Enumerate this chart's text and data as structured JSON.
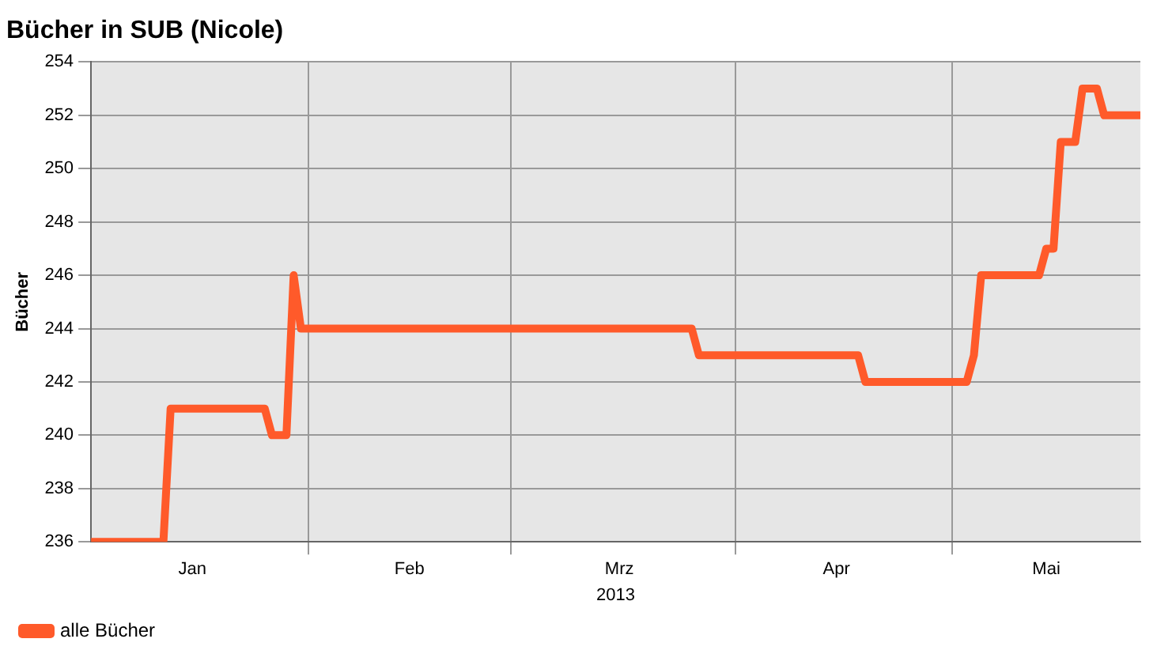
{
  "chart_data": {
    "type": "line",
    "title": "Bücher in SUB (Nicole)",
    "xlabel": "2013",
    "ylabel": "Bücher",
    "x": [
      "2013-01-02",
      "2013-01-12",
      "2013-01-13",
      "2013-01-26",
      "2013-01-27",
      "2013-01-29",
      "2013-01-30",
      "2013-01-31",
      "2013-03-26",
      "2013-03-27",
      "2013-04-18",
      "2013-04-19",
      "2013-05-03",
      "2013-05-04",
      "2013-05-05",
      "2013-05-13",
      "2013-05-14",
      "2013-05-15",
      "2013-05-16",
      "2013-05-18",
      "2013-05-19",
      "2013-05-21",
      "2013-05-22",
      "2013-05-27"
    ],
    "series": [
      {
        "name": "alle Bücher",
        "color": "#ff5a2a",
        "values": [
          236,
          236,
          241,
          241,
          240,
          240,
          246,
          244,
          244,
          243,
          243,
          242,
          242,
          243,
          246,
          246,
          247,
          247,
          251,
          251,
          253,
          253,
          252,
          252
        ]
      }
    ],
    "xlim": [
      "2013-01-02",
      "2013-05-27"
    ],
    "xticks": [
      {
        "value": "2013-01-16",
        "label": "Jan"
      },
      {
        "value": "2013-02-01",
        "label": null
      },
      {
        "value": "2013-02-15",
        "label": "Feb"
      },
      {
        "value": "2013-03-01",
        "label": null
      },
      {
        "value": "2013-03-16",
        "label": "Mrz"
      },
      {
        "value": "2013-04-01",
        "label": null
      },
      {
        "value": "2013-04-15",
        "label": "Apr"
      },
      {
        "value": "2013-05-01",
        "label": null
      },
      {
        "value": "2013-05-14",
        "label": "Mai"
      }
    ],
    "ylim": [
      236,
      254
    ],
    "yticks": [
      236,
      238,
      240,
      242,
      244,
      246,
      248,
      250,
      252,
      254
    ],
    "grid": true,
    "legend": "bottom",
    "marker": "none",
    "line_style": "solid"
  }
}
